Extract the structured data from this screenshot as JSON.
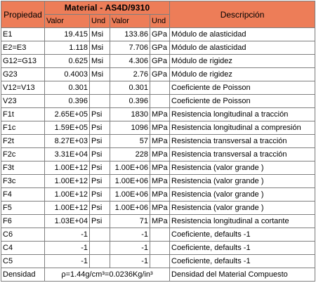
{
  "table": {
    "header": {
      "property_label": "Propiedad",
      "material_label": "Material - AS4D/9310",
      "description_label": "Descripción",
      "valor1": "Valor",
      "und1": "Und",
      "valor2": "Valor",
      "und2": "Und"
    },
    "rows": [
      {
        "sym": "E1",
        "v1": "19.415",
        "u1": "Msi",
        "v2": "133.86",
        "u2": "GPa",
        "desc": "Módulo de alasticidad"
      },
      {
        "sym": "E2=E3",
        "v1": "1.118",
        "u1": "Msi",
        "v2": "7.706",
        "u2": "GPa",
        "desc": "Módulo de alasticidad"
      },
      {
        "sym": "G12=G13",
        "v1": "0.625",
        "u1": "Msi",
        "v2": "4.306",
        "u2": "GPa",
        "desc": "Módulo de rigidez"
      },
      {
        "sym": "G23",
        "v1": "0.4003",
        "u1": "Msi",
        "v2": "2.76",
        "u2": "GPa",
        "desc": "Módulo de rigidez"
      },
      {
        "sym": "V12=V13",
        "v1": "0.301",
        "u1": "",
        "v2": "0.301",
        "u2": "",
        "desc": "Coeficiente de Poisson"
      },
      {
        "sym": "V23",
        "v1": "0.396",
        "u1": "",
        "v2": "0.396",
        "u2": "",
        "desc": "Coeficiente de Poisson"
      },
      {
        "sym": "F1t",
        "v1": "2.65E+05",
        "u1": "Psi",
        "v2": "1830",
        "u2": "MPa",
        "desc": "Resistencia longitudinal a tracción"
      },
      {
        "sym": "F1c",
        "v1": "1.59E+05",
        "u1": "Psi",
        "v2": "1096",
        "u2": "MPa",
        "desc": "Resistencia longitudinal a compresión"
      },
      {
        "sym": "F2t",
        "v1": "8.27E+03",
        "u1": "Psi",
        "v2": "57",
        "u2": "MPa",
        "desc": "Resistencia transversal a tracción"
      },
      {
        "sym": "F2c",
        "v1": "3.31E+04",
        "u1": "Psi",
        "v2": "228",
        "u2": "MPa",
        "desc": "Resistencia transversal a tracción"
      },
      {
        "sym": "F3t",
        "v1": "1.00E+12",
        "u1": "Psi",
        "v2": "1.00E+06",
        "u2": "MPa",
        "desc": "Resistencia (valor grande )"
      },
      {
        "sym": "F3c",
        "v1": "1.00E+12",
        "u1": "Psi",
        "v2": "1.00E+06",
        "u2": "MPa",
        "desc": "Resistencia (valor grande )"
      },
      {
        "sym": "F4",
        "v1": "1.00E+12",
        "u1": "Psi",
        "v2": "1.00E+06",
        "u2": "MPa",
        "desc": "Resistencia (valor grande )"
      },
      {
        "sym": "F5",
        "v1": "1.00E+12",
        "u1": "Psi",
        "v2": "1.00E+06",
        "u2": "MPa",
        "desc": "Resistencia (valor grande )"
      },
      {
        "sym": "F6",
        "v1": "1.03E+04",
        "u1": "Psi",
        "v2": "71",
        "u2": "MPa",
        "desc": "Resistencia longitudinal a cortante"
      },
      {
        "sym": "C6",
        "v1": "-1",
        "u1": "",
        "v2": "-1",
        "u2": "",
        "desc": "Coeficiente, defaults -1"
      },
      {
        "sym": "C4",
        "v1": "-1",
        "u1": "",
        "v2": "-1",
        "u2": "",
        "desc": "Coeficiente, defaults -1"
      },
      {
        "sym": "C5",
        "v1": "-1",
        "u1": "",
        "v2": "-1",
        "u2": "",
        "desc": "Coeficiente, defaults -1"
      }
    ],
    "density": {
      "label": "Densidad",
      "value": "ρ=1.44g/cm³=0.0236Kg/in³",
      "desc": "Densidad del Material Compuesto"
    }
  },
  "colors": {
    "header_bg": "#ed7d58",
    "border": "#7f7f7f"
  }
}
